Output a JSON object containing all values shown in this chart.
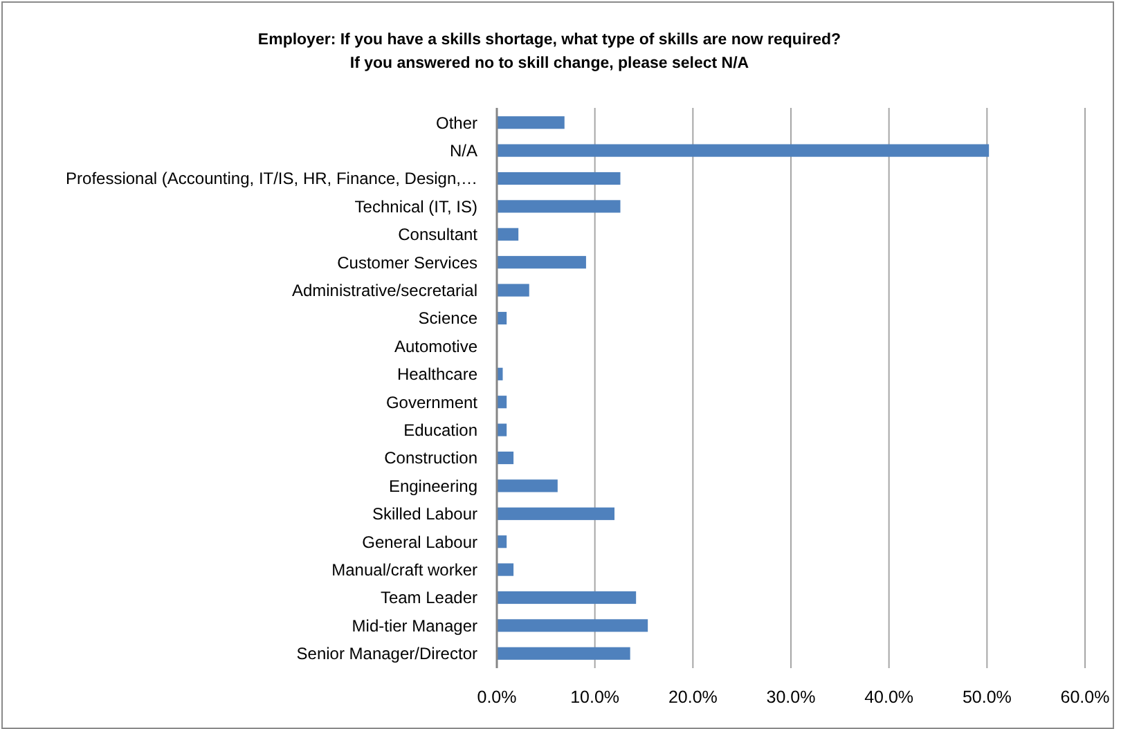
{
  "chart_data": {
    "type": "bar",
    "orientation": "horizontal",
    "title": "Employer:  If you have a skills shortage, what type of skills are now required?\nIf you answered no to skill change, please select N/A",
    "categories": [
      "Other",
      "N/A",
      "Professional (Accounting, IT/IS, HR, Finance, Design,…",
      "Technical (IT, IS)",
      "Consultant",
      "Customer Services",
      "Administrative/secretarial",
      "Science",
      "Automotive",
      "Healthcare",
      "Government",
      "Education",
      "Construction",
      "Engineering",
      "Skilled Labour",
      "General Labour",
      "Manual/craft worker",
      "Team Leader",
      "Mid-tier Manager",
      "Senior Manager/Director"
    ],
    "values": [
      6.9,
      50.2,
      12.6,
      12.6,
      2.2,
      9.1,
      3.3,
      1.0,
      0,
      0.6,
      1.0,
      1.0,
      1.7,
      6.2,
      12.0,
      1.0,
      1.7,
      14.2,
      15.4,
      13.6
    ],
    "color": "#4f81bd",
    "xlim": [
      0,
      60
    ],
    "xticks": [
      {
        "value": 0,
        "label": "0.0%"
      },
      {
        "value": 10,
        "label": "10.0%"
      },
      {
        "value": 20,
        "label": "20.0%"
      },
      {
        "value": 30,
        "label": "30.0%"
      },
      {
        "value": 40,
        "label": "40.0%"
      },
      {
        "value": 50,
        "label": "50.0%"
      },
      {
        "value": 60,
        "label": "60.0%"
      }
    ],
    "grid": "x"
  }
}
